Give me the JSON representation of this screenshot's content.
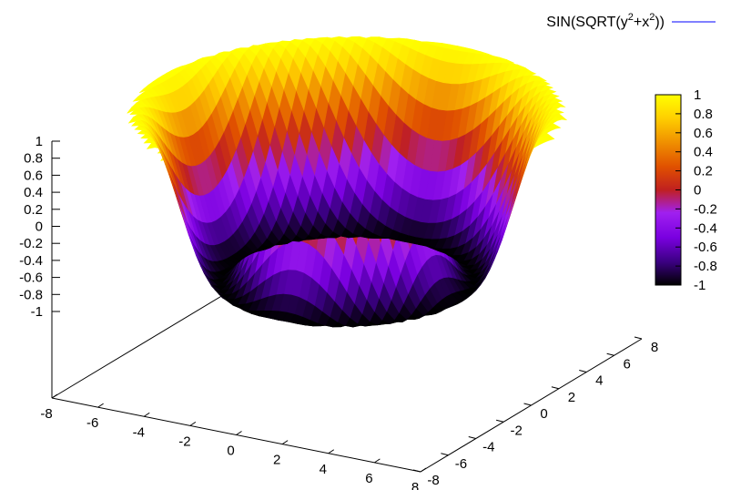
{
  "chart_data": {
    "type": "surface",
    "function": "sin(sqrt(y^2 + x^2))",
    "legend": {
      "label_parts": [
        "SIN(SQRT(y",
        "2",
        "+x",
        "2",
        "))"
      ],
      "placement": "top-right",
      "line_color": "#0000ff"
    },
    "x_range": [
      -8,
      8
    ],
    "y_range": [
      -8,
      8
    ],
    "z_range": [
      -1,
      1
    ],
    "x_ticks": [
      "-8",
      "-6",
      "-4",
      "-2",
      "0",
      "2",
      "4",
      "6",
      "8"
    ],
    "y_ticks": [
      "-8",
      "-6",
      "-4",
      "-2",
      "0",
      "2",
      "4",
      "6",
      "8"
    ],
    "z_ticks": [
      "1",
      "0.8",
      "0.6",
      "0.4",
      "0.2",
      "0",
      "-0.2",
      "-0.4",
      "-0.6",
      "-0.8",
      "-1"
    ],
    "colorbar": {
      "range": [
        -1,
        1
      ],
      "ticks": [
        "1",
        "0.8",
        "0.6",
        "0.4",
        "0.2",
        "0",
        "-0.2",
        "-0.4",
        "-0.6",
        "-0.8",
        "-1"
      ],
      "palette": [
        "#000000",
        "#3a0080",
        "#7a00e0",
        "#a020f0",
        "#c02020",
        "#e05000",
        "#f09000",
        "#ffd000",
        "#ffff00"
      ]
    },
    "grid": false
  }
}
